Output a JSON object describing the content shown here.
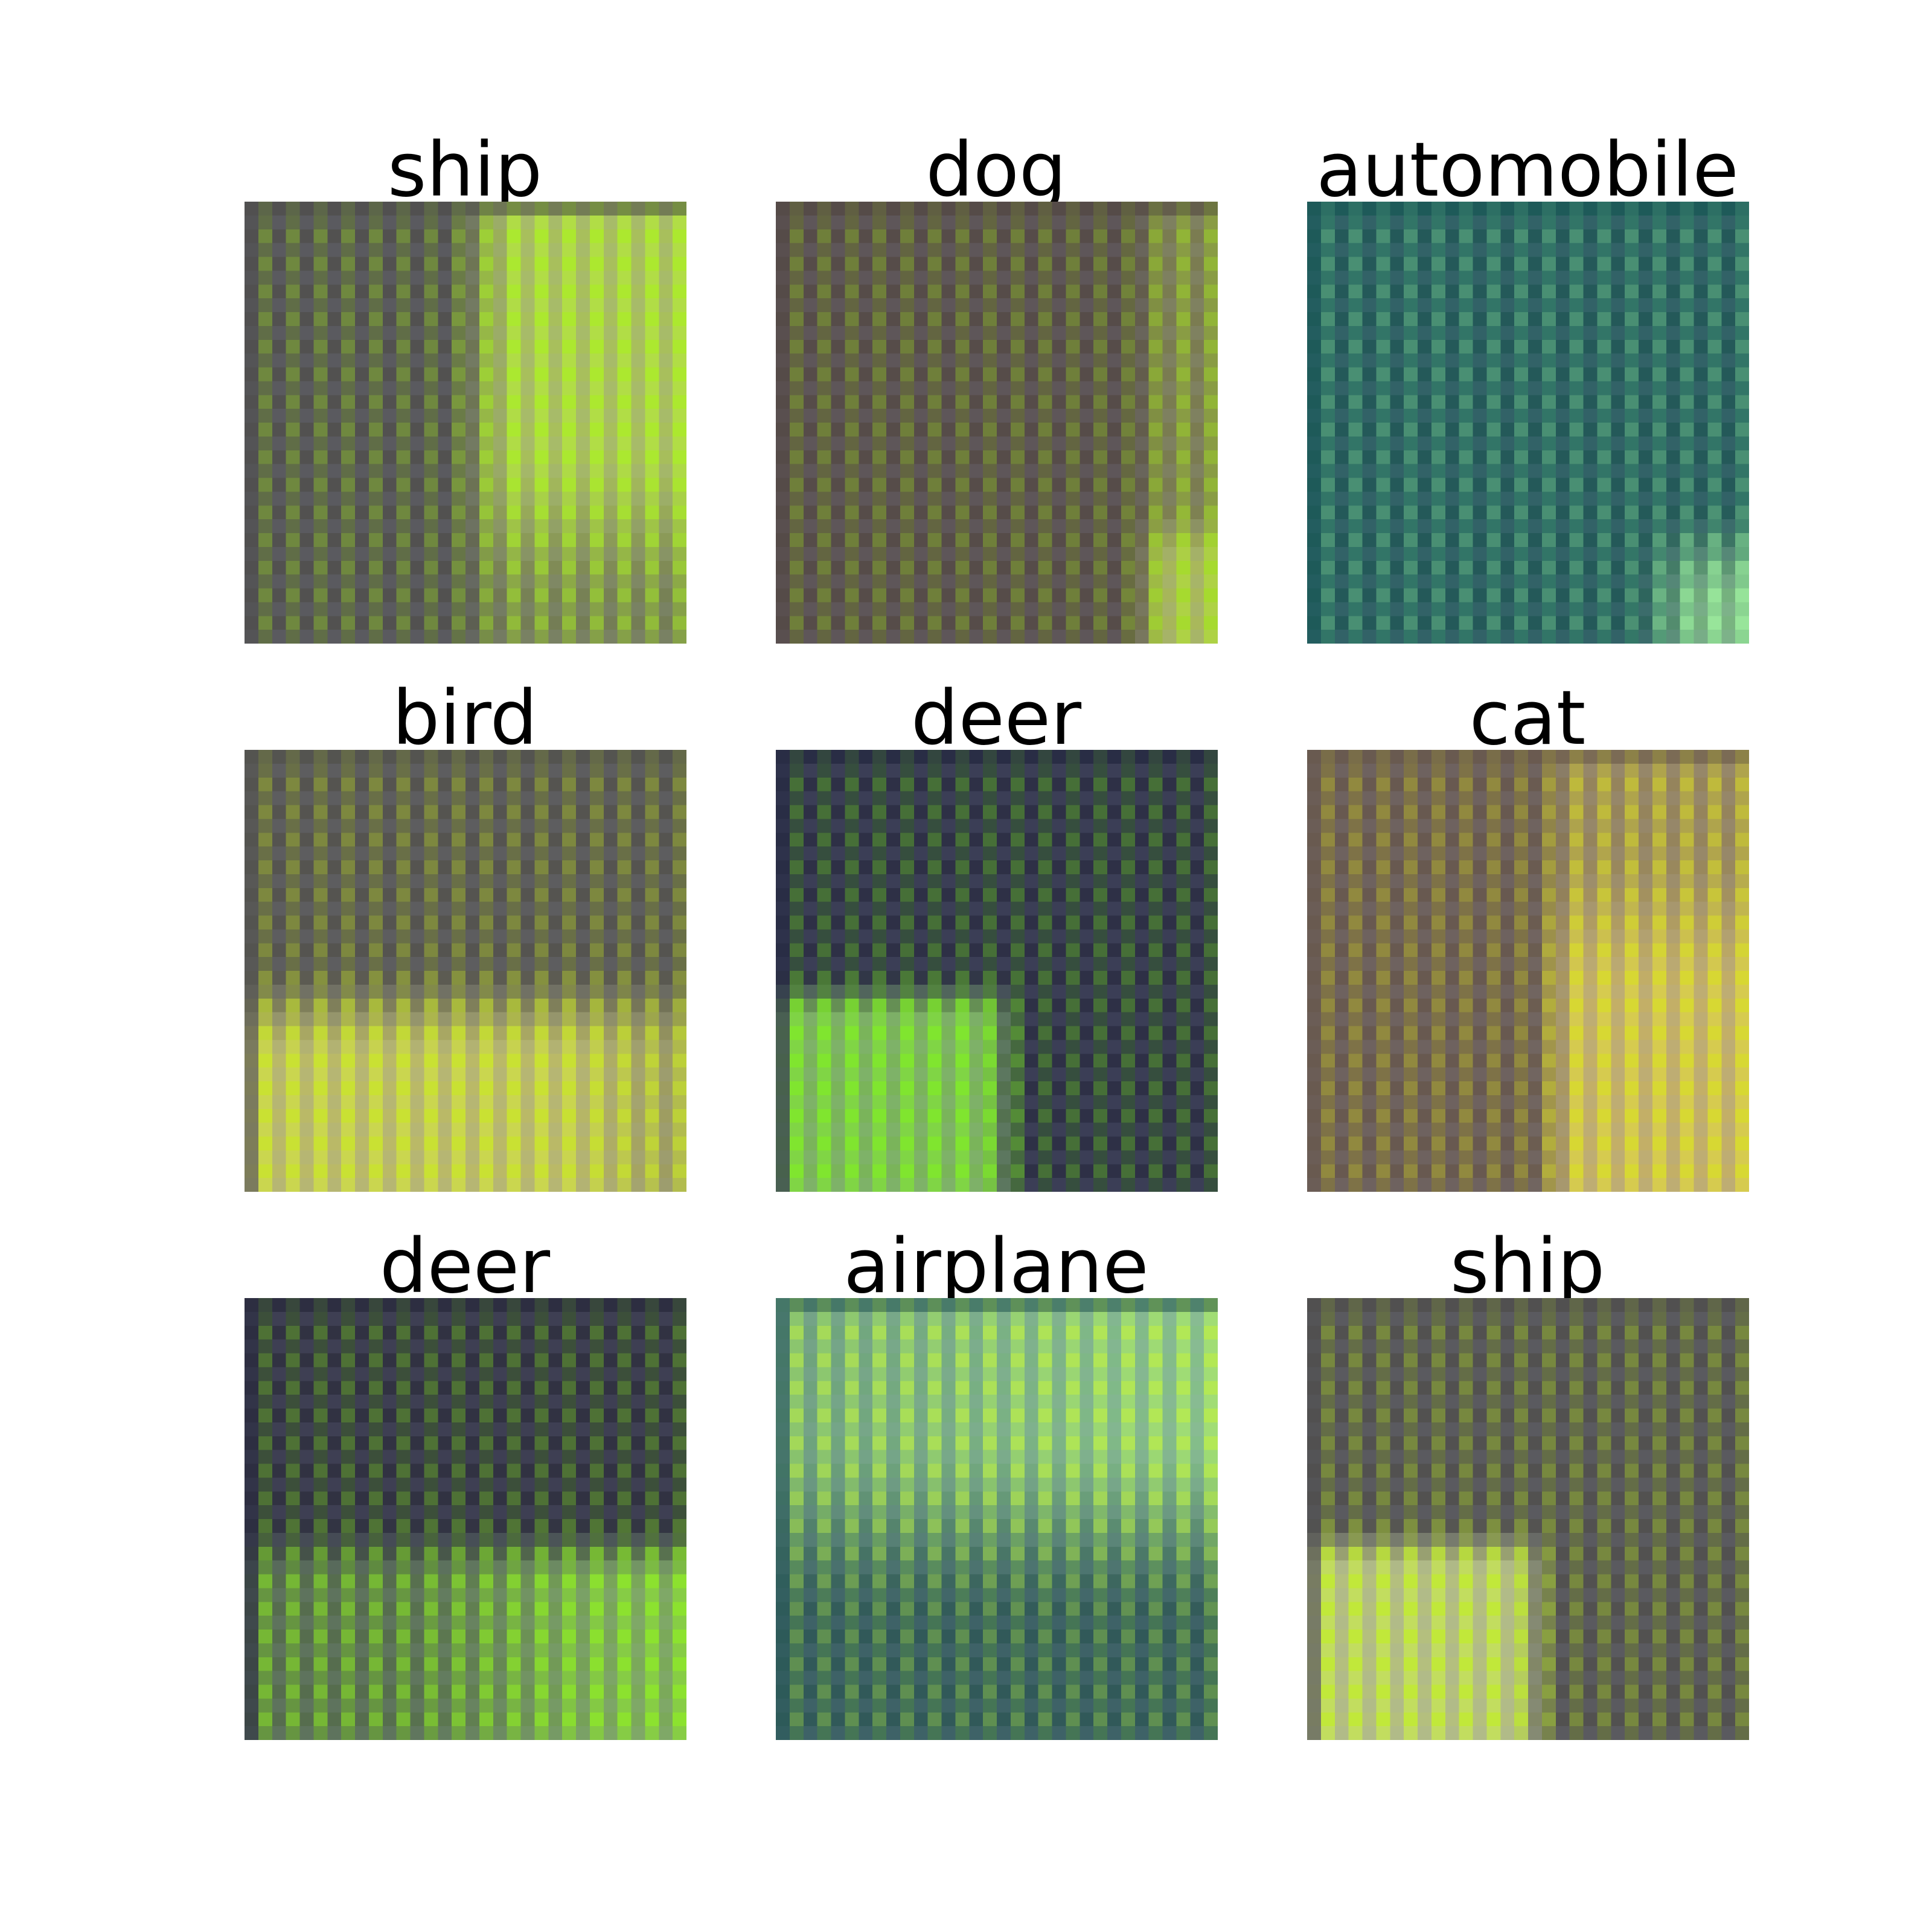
{
  "figure": {
    "columns": 3,
    "rows": 3,
    "thumbnail_resolution": 32,
    "images": [
      {
        "label": "ship",
        "base_color": "#505050",
        "bright_color": "#c8e860",
        "highlight": "#a8f020",
        "light_region": "top-right"
      },
      {
        "label": "dog",
        "base_color": "#554a48",
        "bright_color": "#c8e060",
        "highlight": "#a0e020",
        "light_region": "right-edge-bottom"
      },
      {
        "label": "automobile",
        "base_color": "#1a5a5a",
        "bright_color": "#90d890",
        "highlight": "#a0f0a0",
        "light_region": "bottom-right-corner"
      },
      {
        "label": "bird",
        "base_color": "#545450",
        "bright_color": "#e0e070",
        "highlight": "#c8e820",
        "light_region": "bottom"
      },
      {
        "label": "deer",
        "base_color": "#262a44",
        "bright_color": "#90e060",
        "highlight": "#80f020",
        "light_region": "bottom-left"
      },
      {
        "label": "cat",
        "base_color": "#6a5a50",
        "bright_color": "#e8d070",
        "highlight": "#d8e020",
        "light_region": "right"
      },
      {
        "label": "deer",
        "base_color": "#2a2c40",
        "bright_color": "#90d060",
        "highlight": "#90f020",
        "light_region": "bottom-right"
      },
      {
        "label": "airplane",
        "base_color": "#2a5a5a",
        "bright_color": "#a0e8a0",
        "highlight": "#c0f040",
        "light_region": "top"
      },
      {
        "label": "ship",
        "base_color": "#505050",
        "bright_color": "#d8e890",
        "highlight": "#c0f020",
        "light_region": "bottom-left"
      }
    ]
  }
}
